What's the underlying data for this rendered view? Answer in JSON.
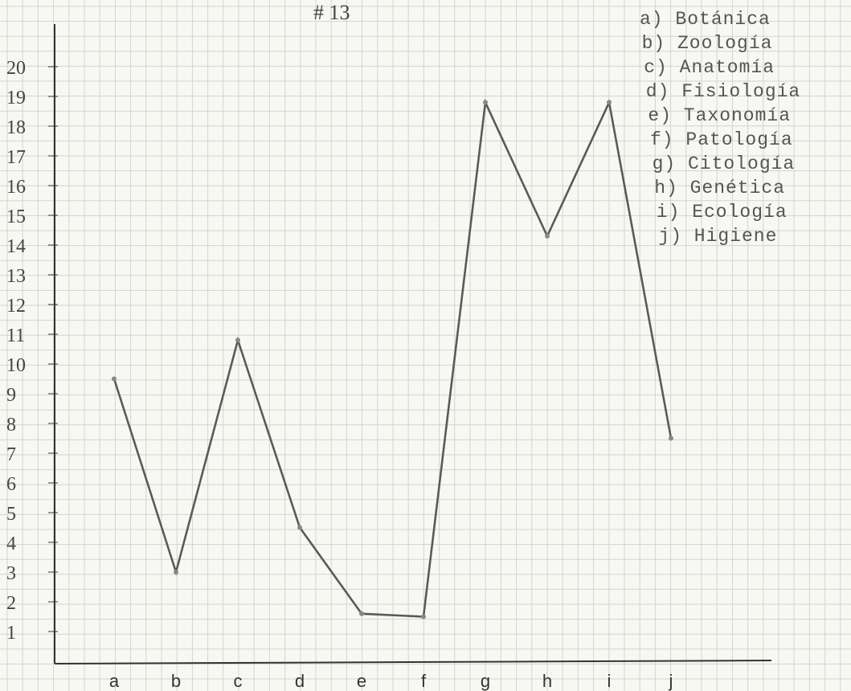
{
  "chart_data": {
    "type": "line",
    "title": "# 13",
    "categories": [
      "a",
      "b",
      "c",
      "d",
      "e",
      "f",
      "g",
      "h",
      "i",
      "j"
    ],
    "series": [
      {
        "values": [
          9.5,
          3.0,
          10.8,
          4.5,
          1.6,
          1.5,
          18.8,
          14.3,
          18.8,
          7.5
        ]
      }
    ],
    "ytick_labels": [
      "1",
      "2",
      "3",
      "4",
      "5",
      "6",
      "7",
      "8",
      "9",
      "10",
      "11",
      "12",
      "13",
      "14",
      "15",
      "16",
      "17",
      "18",
      "19",
      "20"
    ],
    "legend": [
      "a) Botánica",
      "b) Zoología",
      "c) Anatomía",
      "d) Fisiología",
      "e) Taxonomía",
      "f) Patología",
      "g) Citología",
      "h) Genética",
      "i) Ecología",
      "j) Higiene"
    ],
    "legend_position": "top-right",
    "grid": true,
    "colors": {
      "line": "#5a5a5a",
      "grid": "#cfd4d6",
      "axis": "#333333",
      "text": "#444444"
    }
  }
}
